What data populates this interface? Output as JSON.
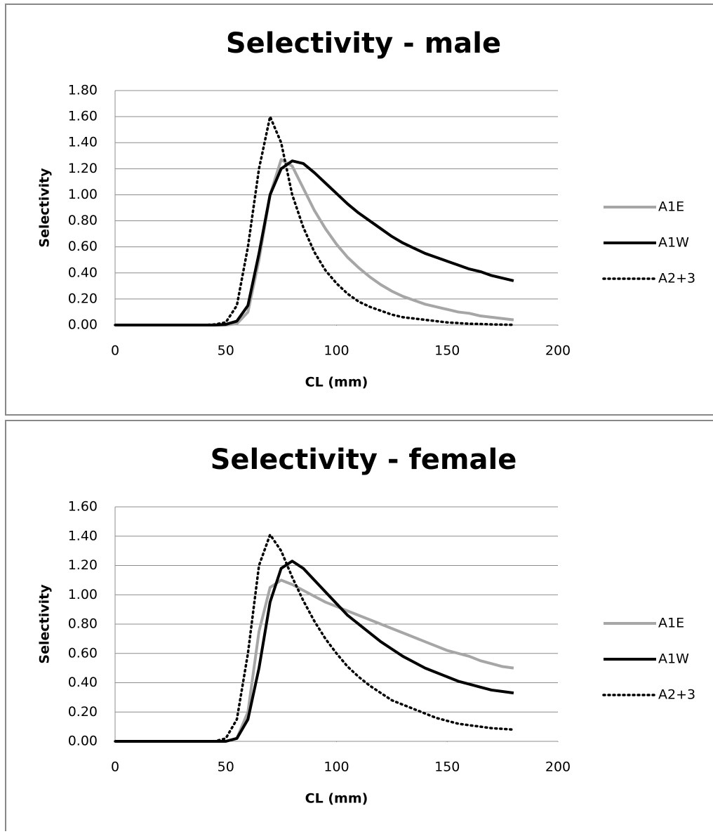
{
  "chart_data": [
    {
      "type": "line",
      "title": "Selectivity - male",
      "x_label": "CL (mm)",
      "y_label": "Selectivity",
      "x": [
        0,
        5,
        10,
        15,
        20,
        25,
        30,
        35,
        40,
        45,
        50,
        55,
        60,
        65,
        70,
        75,
        80,
        85,
        90,
        95,
        100,
        105,
        110,
        115,
        120,
        125,
        130,
        135,
        140,
        145,
        150,
        155,
        160,
        165,
        170,
        175,
        180
      ],
      "series": [
        {
          "name": "A1E",
          "color": "#a6a6a6",
          "line_style": "solid",
          "values": [
            0,
            0,
            0,
            0,
            0,
            0,
            0,
            0,
            0,
            0,
            0,
            0.01,
            0.1,
            0.5,
            1.0,
            1.27,
            1.22,
            1.05,
            0.88,
            0.74,
            0.62,
            0.52,
            0.44,
            0.37,
            0.31,
            0.26,
            0.22,
            0.19,
            0.16,
            0.14,
            0.12,
            0.1,
            0.09,
            0.07,
            0.06,
            0.05,
            0.04
          ]
        },
        {
          "name": "A1W",
          "color": "#000000",
          "line_style": "solid",
          "values": [
            0,
            0,
            0,
            0,
            0,
            0,
            0,
            0,
            0,
            0,
            0.005,
            0.03,
            0.15,
            0.55,
            1.0,
            1.2,
            1.26,
            1.24,
            1.17,
            1.09,
            1.01,
            0.93,
            0.86,
            0.8,
            0.74,
            0.68,
            0.63,
            0.59,
            0.55,
            0.52,
            0.49,
            0.46,
            0.43,
            0.41,
            0.38,
            0.36,
            0.34
          ]
        },
        {
          "name": "A2+3",
          "color": "#000000",
          "line_style": "dotted",
          "values": [
            0,
            0,
            0,
            0,
            0,
            0,
            0,
            0,
            0,
            0.005,
            0.02,
            0.15,
            0.6,
            1.2,
            1.6,
            1.4,
            1.0,
            0.75,
            0.56,
            0.42,
            0.32,
            0.24,
            0.18,
            0.14,
            0.11,
            0.08,
            0.06,
            0.05,
            0.04,
            0.03,
            0.02,
            0.015,
            0.01,
            0.008,
            0.005,
            0.003,
            0.002
          ]
        }
      ],
      "xlim": [
        0,
        200
      ],
      "xticks": [
        0,
        50,
        100,
        150,
        200
      ],
      "ylim": [
        0,
        1.8
      ],
      "yticks": [
        {
          "value": 0,
          "label": "0.00"
        },
        {
          "value": 0.2,
          "label": "0.20"
        },
        {
          "value": 0.4,
          "label": "0.40"
        },
        {
          "value": 0.6,
          "label": "0.60"
        },
        {
          "value": 0.8,
          "label": "0.80"
        },
        {
          "value": 1.0,
          "label": "1.00"
        },
        {
          "value": 1.2,
          "label": "1.20"
        },
        {
          "value": 1.4,
          "label": "1.40"
        },
        {
          "value": 1.6,
          "label": "1.60"
        },
        {
          "value": 1.8,
          "label": "1.80"
        }
      ],
      "grid": true,
      "legend": "right"
    },
    {
      "type": "line",
      "title": "Selectivity - female",
      "x_label": "CL (mm)",
      "y_label": "Selectivity",
      "x": [
        0,
        5,
        10,
        15,
        20,
        25,
        30,
        35,
        40,
        45,
        50,
        55,
        60,
        65,
        70,
        75,
        80,
        85,
        90,
        95,
        100,
        105,
        110,
        115,
        120,
        125,
        130,
        135,
        140,
        145,
        150,
        155,
        160,
        165,
        170,
        175,
        180
      ],
      "series": [
        {
          "name": "A1E",
          "color": "#a6a6a6",
          "line_style": "solid",
          "values": [
            0,
            0,
            0,
            0,
            0,
            0,
            0,
            0,
            0,
            0,
            0,
            0.02,
            0.2,
            0.75,
            1.05,
            1.1,
            1.07,
            1.03,
            0.99,
            0.95,
            0.92,
            0.89,
            0.86,
            0.83,
            0.8,
            0.77,
            0.74,
            0.71,
            0.68,
            0.65,
            0.62,
            0.6,
            0.58,
            0.55,
            0.53,
            0.51,
            0.5
          ]
        },
        {
          "name": "A1W",
          "color": "#000000",
          "line_style": "solid",
          "values": [
            0,
            0,
            0,
            0,
            0,
            0,
            0,
            0,
            0,
            0,
            0,
            0.02,
            0.15,
            0.5,
            0.95,
            1.18,
            1.23,
            1.18,
            1.1,
            1.02,
            0.94,
            0.86,
            0.8,
            0.74,
            0.68,
            0.63,
            0.58,
            0.54,
            0.5,
            0.47,
            0.44,
            0.41,
            0.39,
            0.37,
            0.35,
            0.34,
            0.33
          ]
        },
        {
          "name": "A2+3",
          "color": "#000000",
          "line_style": "dotted",
          "values": [
            0,
            0,
            0,
            0,
            0,
            0,
            0,
            0,
            0,
            0,
            0.02,
            0.15,
            0.6,
            1.2,
            1.41,
            1.3,
            1.12,
            0.96,
            0.82,
            0.7,
            0.6,
            0.51,
            0.44,
            0.38,
            0.33,
            0.28,
            0.25,
            0.22,
            0.19,
            0.16,
            0.14,
            0.12,
            0.11,
            0.1,
            0.09,
            0.085,
            0.08
          ]
        }
      ],
      "xlim": [
        0,
        200
      ],
      "xticks": [
        0,
        50,
        100,
        150,
        200
      ],
      "ylim": [
        0,
        1.6
      ],
      "yticks": [
        {
          "value": 0,
          "label": "0.00"
        },
        {
          "value": 0.2,
          "label": "0.20"
        },
        {
          "value": 0.4,
          "label": "0.40"
        },
        {
          "value": 0.6,
          "label": "0.60"
        },
        {
          "value": 0.8,
          "label": "0.80"
        },
        {
          "value": 1.0,
          "label": "1.00"
        },
        {
          "value": 1.2,
          "label": "1.20"
        },
        {
          "value": 1.4,
          "label": "1.40"
        },
        {
          "value": 1.6,
          "label": "1.60"
        }
      ],
      "grid": true,
      "legend": "right"
    }
  ]
}
